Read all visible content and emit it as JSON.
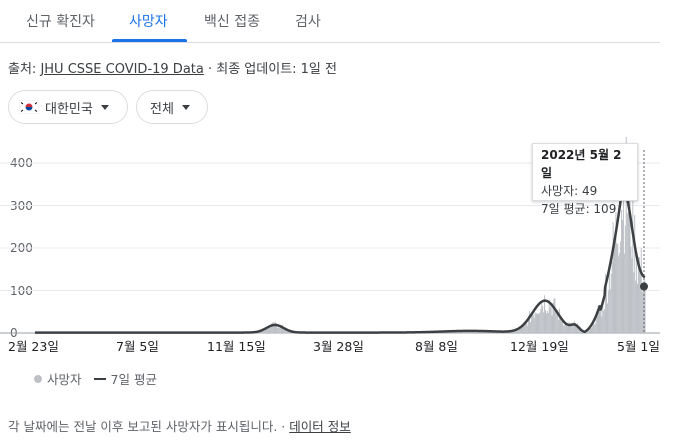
{
  "tabs": [
    "신규 확진자",
    "사망자",
    "백신 접종",
    "검사"
  ],
  "active_tab": 1,
  "source": {
    "prefix": "출처: ",
    "link": "JHU CSSE COVID-19 Data",
    "suffix": " · 최종 업데이트: 1일 전"
  },
  "filters": {
    "region": "대한민국",
    "range": "전체"
  },
  "tooltip": {
    "date": "2022년 5월 2일",
    "deaths": "사망자: 49",
    "avg": "7일 평균: 109"
  },
  "legend": {
    "deaths": "사망자",
    "avg": "7일 평균"
  },
  "footer": {
    "text": "각 날짜에는 전날 이후 보고된 사망자가 표시됩니다. · ",
    "link": "데이터 정보"
  },
  "colors": {
    "accent": "#1a73e8",
    "bars": "#bdc1c6",
    "line": "#3c4043"
  },
  "chart_data": {
    "type": "bar",
    "ylim": [
      0,
      400
    ],
    "yticks": [
      "0",
      "100",
      "200",
      "300",
      "400"
    ],
    "xtick_labels": [
      "2월 23일",
      "7월 5일",
      "11월 15일",
      "3월 28일",
      "8월 8일",
      "12월 19일",
      "5월 1일"
    ],
    "series": [
      {
        "name": "7일 평균",
        "type": "line",
        "points": [
          [
            "2월 23일",
            1
          ],
          [
            "7월 5일",
            1
          ],
          [
            "11월 15일",
            20
          ],
          [
            "3월 28일",
            1
          ],
          [
            "8월 8일",
            3
          ],
          [
            "12월 19일",
            78
          ],
          [
            "5월 1일",
            109
          ]
        ],
        "peak": 330
      }
    ],
    "selected": {
      "date": "2022년 5월 2일",
      "deaths": 49,
      "avg": 109
    }
  }
}
